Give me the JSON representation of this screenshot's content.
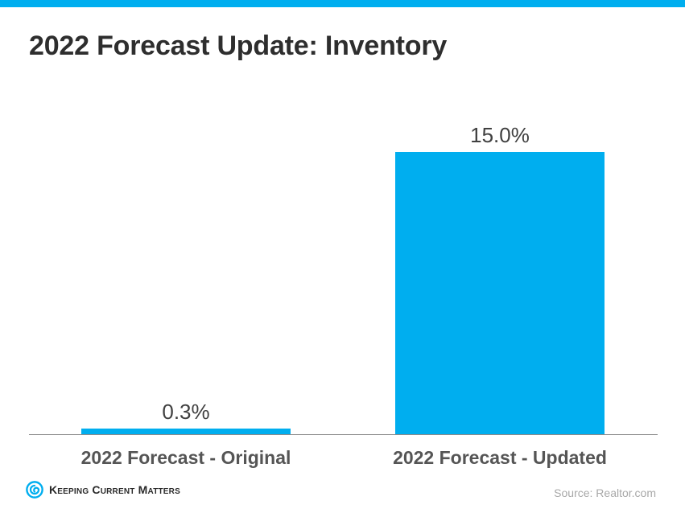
{
  "theme": {
    "accent": "#00AEEF",
    "title_color": "#2e2e2e",
    "label_color": "#555555"
  },
  "title": "2022 Forecast Update: Inventory",
  "chart_data": {
    "type": "bar",
    "title": "2022 Forecast Update: Inventory",
    "categories": [
      "2022 Forecast - Original",
      "2022 Forecast - Updated"
    ],
    "values": [
      0.3,
      15.0
    ],
    "value_labels": [
      "0.3%",
      "15.0%"
    ],
    "xlabel": "",
    "ylabel": "",
    "ylim": [
      0,
      15.0
    ],
    "grid": false,
    "legend": "none",
    "bar_color": "#00AEEF"
  },
  "footer": {
    "logo_text": "Keeping Current Matters",
    "logo_icon": "spiral-logo-icon",
    "source": "Source: Realtor.com"
  }
}
